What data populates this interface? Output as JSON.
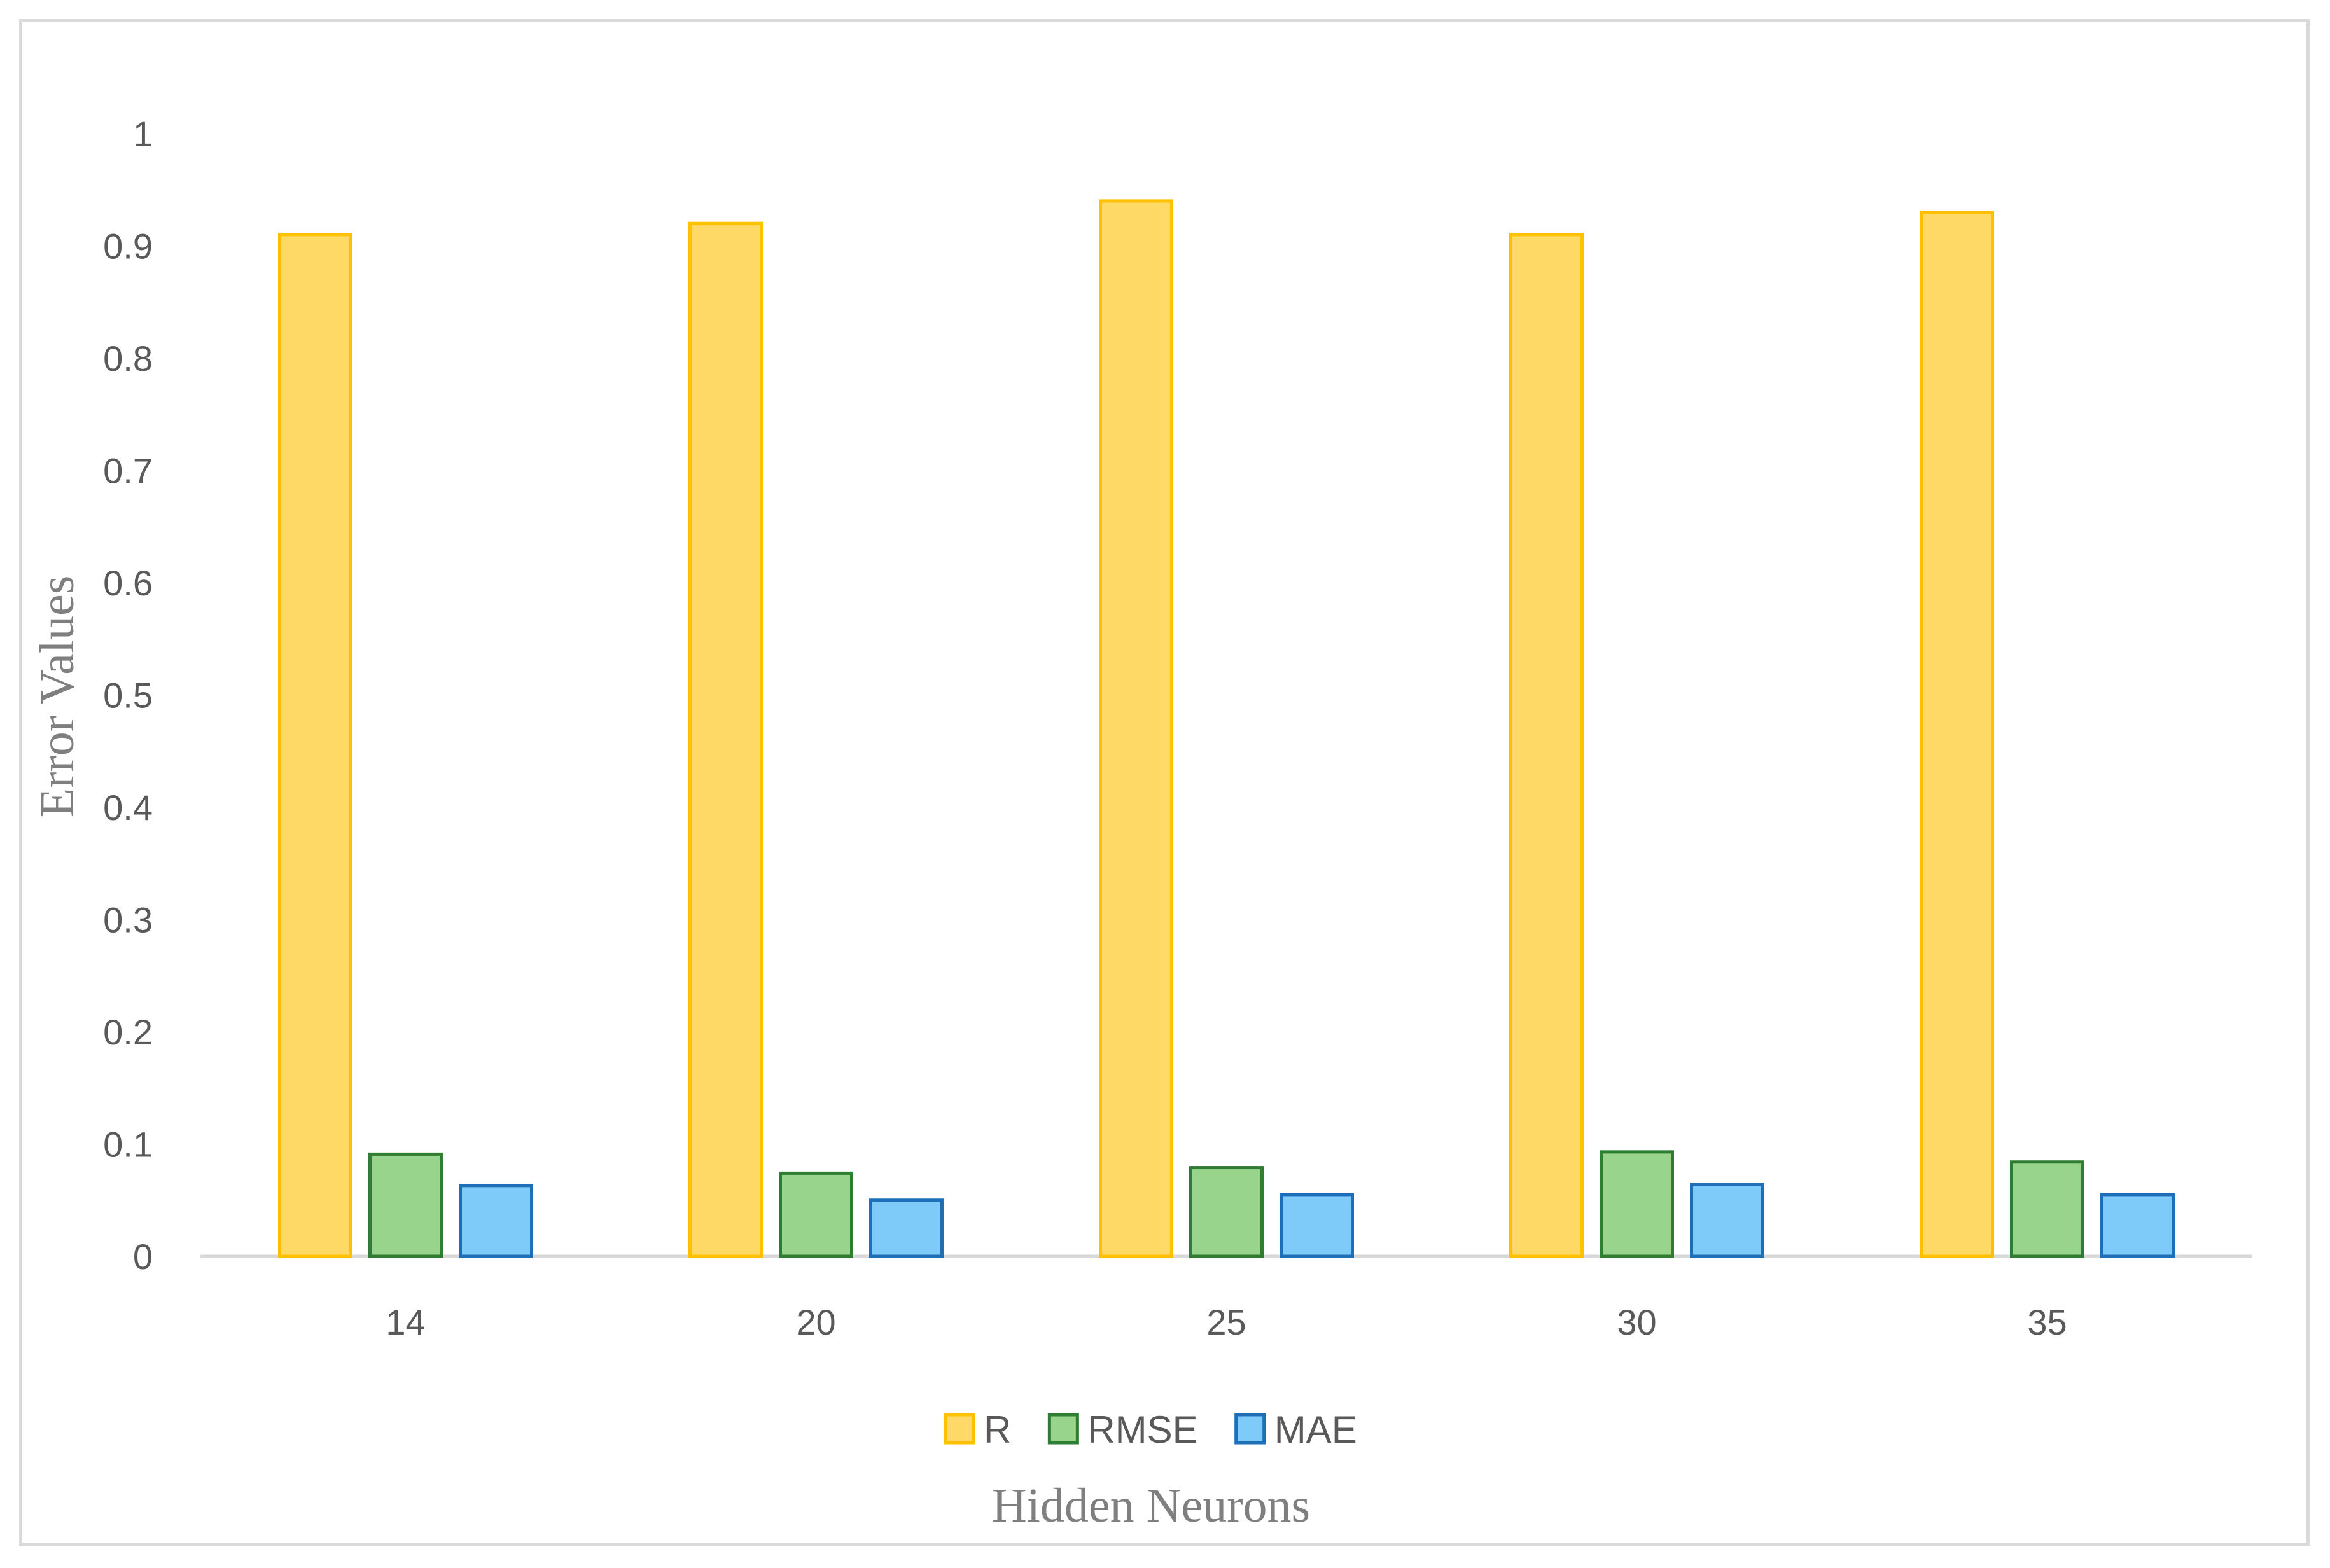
{
  "chart_data": {
    "type": "bar",
    "title": "",
    "xlabel": "Hidden Neurons",
    "ylabel": "Error Values",
    "categories": [
      "14",
      "20",
      "25",
      "30",
      "35"
    ],
    "ylim": [
      0,
      1
    ],
    "yticks": [
      0,
      0.1,
      0.2,
      0.3,
      0.4,
      0.5,
      0.6,
      0.7,
      0.8,
      0.9,
      1
    ],
    "ytick_labels": [
      "0",
      "0.1",
      "0.2",
      "0.3",
      "0.4",
      "0.5",
      "0.6",
      "0.7",
      "0.8",
      "0.9",
      "1"
    ],
    "grid": false,
    "legend_position": "bottom",
    "series": [
      {
        "name": "R",
        "values": [
          0.91,
          0.92,
          0.94,
          0.91,
          0.93
        ],
        "fill": "#ffd966",
        "stroke": "#ffc000"
      },
      {
        "name": "RMSE",
        "values": [
          0.091,
          0.074,
          0.079,
          0.093,
          0.084
        ],
        "fill": "#98d48b",
        "stroke": "#2e7d32"
      },
      {
        "name": "MAE",
        "values": [
          0.063,
          0.05,
          0.055,
          0.064,
          0.055
        ],
        "fill": "#7ecbfa",
        "stroke": "#1f6fb8"
      }
    ]
  }
}
